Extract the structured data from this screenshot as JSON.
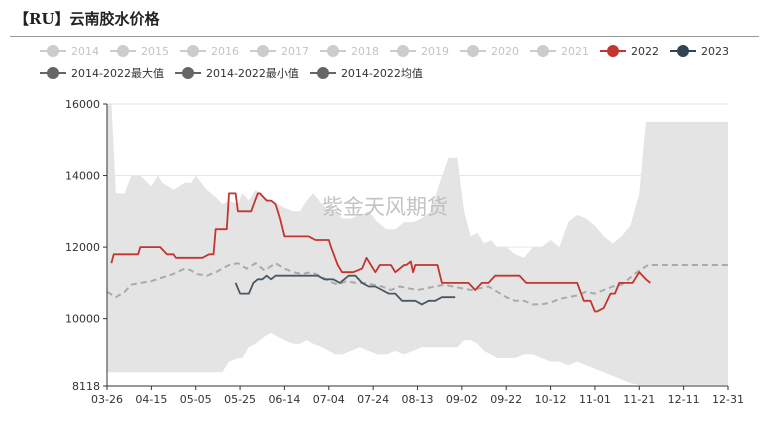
{
  "title": "【RU】云南胶水价格",
  "watermark": "紫金天风期货",
  "legend": [
    {
      "label": "2014",
      "color": "#cccccc",
      "active": false
    },
    {
      "label": "2015",
      "color": "#cccccc",
      "active": false
    },
    {
      "label": "2016",
      "color": "#cccccc",
      "active": false
    },
    {
      "label": "2017",
      "color": "#cccccc",
      "active": false
    },
    {
      "label": "2018",
      "color": "#cccccc",
      "active": false
    },
    {
      "label": "2019",
      "color": "#cccccc",
      "active": false
    },
    {
      "label": "2020",
      "color": "#cccccc",
      "active": false
    },
    {
      "label": "2021",
      "color": "#cccccc",
      "active": false
    },
    {
      "label": "2022",
      "color": "#c23531",
      "active": true
    },
    {
      "label": "2023",
      "color": "#2f4554",
      "active": true
    },
    {
      "label": "2014-2022最大值",
      "color": "#666666",
      "active": true
    },
    {
      "label": "2014-2022最小值",
      "color": "#666666",
      "active": true
    },
    {
      "label": "2014-2022均值",
      "color": "#666666",
      "active": true
    }
  ],
  "chart_data": {
    "type": "line",
    "x_categories": [
      "03-26",
      "04-15",
      "05-05",
      "05-25",
      "06-14",
      "07-04",
      "07-24",
      "08-13",
      "09-02",
      "09-22",
      "10-12",
      "11-01",
      "11-21",
      "12-11",
      "12-31"
    ],
    "x_start": "03-26",
    "x_end": "12-31",
    "y_ticks": [
      8118,
      10000,
      12000,
      14000,
      16000
    ],
    "ylim": [
      8118,
      16000
    ],
    "grid": true,
    "legend_position": "top",
    "range_band": {
      "name": "2014-2022最大值 / 2014-2022最小值",
      "color": "#e4e4e4",
      "x": [
        "03-26",
        "03-28",
        "03-30",
        "04-03",
        "04-06",
        "04-10",
        "04-15",
        "04-18",
        "04-20",
        "04-25",
        "04-30",
        "05-03",
        "05-05",
        "05-10",
        "05-14",
        "05-17",
        "05-20",
        "05-24",
        "05-26",
        "05-29",
        "06-01",
        "06-05",
        "06-08",
        "06-11",
        "06-14",
        "06-18",
        "06-21",
        "06-24",
        "06-27",
        "07-01",
        "07-04",
        "07-07",
        "07-10",
        "07-14",
        "07-18",
        "07-22",
        "07-26",
        "07-30",
        "08-03",
        "08-07",
        "08-11",
        "08-15",
        "08-19",
        "08-23",
        "08-27",
        "08-31",
        "09-03",
        "09-06",
        "09-09",
        "09-12",
        "09-15",
        "09-18",
        "09-22",
        "09-26",
        "09-30",
        "10-04",
        "10-08",
        "10-12",
        "10-16",
        "10-20",
        "10-24",
        "10-28",
        "11-01",
        "11-05",
        "11-09",
        "11-13",
        "11-17",
        "11-21",
        "11-24",
        "11-27",
        "12-01",
        "12-05",
        "12-11",
        "12-16",
        "12-21",
        "12-26",
        "12-31"
      ],
      "max": [
        16000,
        16000,
        13500,
        13500,
        14000,
        14000,
        13700,
        14000,
        13800,
        13600,
        13800,
        13800,
        14000,
        13600,
        13400,
        13200,
        13300,
        13200,
        13500,
        13300,
        13600,
        13400,
        13300,
        13200,
        13100,
        13000,
        13000,
        13300,
        13500,
        13200,
        13000,
        13000,
        12800,
        12800,
        12900,
        13000,
        12700,
        12500,
        12500,
        12700,
        12700,
        12800,
        13000,
        13800,
        14500,
        14500,
        13000,
        12300,
        12400,
        12100,
        12200,
        12000,
        12000,
        11800,
        11700,
        12000,
        12000,
        12200,
        12000,
        12700,
        12900,
        12800,
        12600,
        12300,
        12100,
        12300,
        12600,
        13500,
        15500,
        15500,
        15500,
        15500,
        15500,
        15500,
        15500,
        15500,
        15500
      ],
      "min": [
        8500,
        8500,
        8500,
        8500,
        8500,
        8500,
        8500,
        8500,
        8500,
        8500,
        8500,
        8500,
        8500,
        8500,
        8500,
        8500,
        8800,
        8900,
        8900,
        9200,
        9300,
        9500,
        9600,
        9500,
        9400,
        9300,
        9300,
        9400,
        9300,
        9200,
        9100,
        9000,
        9000,
        9100,
        9200,
        9100,
        9000,
        9000,
        9100,
        9000,
        9100,
        9200,
        9200,
        9200,
        9200,
        9200,
        9400,
        9400,
        9300,
        9100,
        9000,
        8900,
        8900,
        8900,
        9000,
        9000,
        8900,
        8800,
        8800,
        8700,
        8800,
        8700,
        8600,
        8500,
        8400,
        8300,
        8200,
        8150,
        8150,
        8150,
        8150,
        8150,
        8150,
        8150,
        8150,
        8150,
        8150
      ]
    },
    "series": [
      {
        "name": "2014-2022均值",
        "color": "#aaaaaa",
        "dashed": true,
        "x": [
          "03-26",
          "03-30",
          "04-03",
          "04-06",
          "04-10",
          "04-15",
          "04-20",
          "04-25",
          "04-30",
          "05-03",
          "05-05",
          "05-10",
          "05-14",
          "05-17",
          "05-20",
          "05-24",
          "05-28",
          "06-01",
          "06-05",
          "06-10",
          "06-14",
          "06-18",
          "06-22",
          "06-26",
          "06-30",
          "07-04",
          "07-08",
          "07-12",
          "07-16",
          "07-20",
          "07-24",
          "07-28",
          "08-01",
          "08-05",
          "08-09",
          "08-13",
          "08-17",
          "08-21",
          "08-25",
          "08-29",
          "09-02",
          "09-06",
          "09-10",
          "09-14",
          "09-18",
          "09-22",
          "09-26",
          "09-30",
          "10-04",
          "10-08",
          "10-12",
          "10-16",
          "10-20",
          "10-24",
          "10-28",
          "11-01",
          "11-05",
          "11-09",
          "11-13",
          "11-17",
          "11-21",
          "11-25",
          "12-01",
          "12-11",
          "12-21",
          "12-31"
        ],
        "y": [
          10750,
          10600,
          10750,
          10950,
          11000,
          11050,
          11150,
          11250,
          11400,
          11350,
          11250,
          11200,
          11300,
          11400,
          11500,
          11550,
          11400,
          11550,
          11350,
          11550,
          11400,
          11300,
          11250,
          11300,
          11200,
          11050,
          10950,
          11050,
          11000,
          11000,
          10950,
          10900,
          10800,
          10900,
          10850,
          10800,
          10850,
          10900,
          10950,
          10900,
          10850,
          10800,
          10850,
          10900,
          10750,
          10600,
          10500,
          10500,
          10400,
          10400,
          10450,
          10550,
          10600,
          10650,
          10750,
          10700,
          10800,
          10900,
          10950,
          11150,
          11350,
          11500,
          11500,
          11500,
          11500,
          11500
        ]
      },
      {
        "name": "2022",
        "color": "#c23531",
        "dashed": false,
        "x": [
          "03-28",
          "03-29",
          "04-01",
          "04-05",
          "04-09",
          "04-10",
          "04-13",
          "04-16",
          "04-19",
          "04-22",
          "04-25",
          "04-26",
          "04-29",
          "05-02",
          "05-05",
          "05-08",
          "05-11",
          "05-13",
          "05-14",
          "05-17",
          "05-19",
          "05-20",
          "05-23",
          "05-24",
          "05-26",
          "05-27",
          "05-30",
          "06-02",
          "06-03",
          "06-06",
          "06-08",
          "06-10",
          "06-12",
          "06-14",
          "06-16",
          "06-20",
          "06-23",
          "06-25",
          "06-28",
          "07-01",
          "07-04",
          "07-05",
          "07-08",
          "07-10",
          "07-12",
          "07-15",
          "07-19",
          "07-21",
          "07-23",
          "07-25",
          "07-27",
          "07-30",
          "08-01",
          "08-03",
          "08-07",
          "08-08",
          "08-10",
          "08-11",
          "08-12",
          "08-13",
          "08-16",
          "08-19",
          "08-22",
          "08-24",
          "08-27",
          "08-30",
          "09-02",
          "09-05",
          "09-08",
          "09-11",
          "09-14",
          "09-17",
          "09-20",
          "09-22",
          "09-25",
          "09-28",
          "10-01",
          "10-04",
          "10-07",
          "10-12",
          "10-15",
          "10-19",
          "10-24",
          "10-27",
          "10-30",
          "11-01",
          "11-02",
          "11-05",
          "11-08",
          "11-10",
          "11-12",
          "11-15",
          "11-18",
          "11-21",
          "11-24",
          "11-26"
        ],
        "y": [
          11550,
          11800,
          11800,
          11800,
          11800,
          12000,
          12000,
          12000,
          12000,
          11800,
          11800,
          11700,
          11700,
          11700,
          11700,
          11700,
          11800,
          11800,
          12500,
          12500,
          12500,
          13500,
          13500,
          13000,
          13000,
          13000,
          13000,
          13500,
          13500,
          13300,
          13300,
          13200,
          12800,
          12300,
          12300,
          12300,
          12300,
          12300,
          12200,
          12200,
          12200,
          12000,
          11500,
          11300,
          11300,
          11300,
          11400,
          11700,
          11500,
          11300,
          11500,
          11500,
          11500,
          11300,
          11500,
          11500,
          11600,
          11300,
          11500,
          11500,
          11500,
          11500,
          11500,
          11000,
          11000,
          11000,
          11000,
          11000,
          10800,
          11000,
          11000,
          11200,
          11200,
          11200,
          11200,
          11200,
          11000,
          11000,
          11000,
          11000,
          11000,
          11000,
          11000,
          10500,
          10500,
          10200,
          10200,
          10300,
          10700,
          10700,
          11000,
          11000,
          11000,
          11300,
          11100,
          11000
        ]
      },
      {
        "name": "2023",
        "color": "#4a5866",
        "dashed": false,
        "x": [
          "05-23",
          "05-25",
          "05-27",
          "05-29",
          "05-31",
          "06-02",
          "06-04",
          "06-06",
          "06-08",
          "06-10",
          "06-12",
          "06-14",
          "06-17",
          "06-20",
          "06-23",
          "06-26",
          "06-29",
          "07-02",
          "07-04",
          "07-06",
          "07-09",
          "07-11",
          "07-13",
          "07-16",
          "07-19",
          "07-22",
          "07-25",
          "07-28",
          "07-31",
          "08-03",
          "08-06",
          "08-09",
          "08-12",
          "08-15",
          "08-18",
          "08-21",
          "08-24",
          "08-27",
          "08-30"
        ],
        "y": [
          11000,
          10700,
          10700,
          10700,
          11000,
          11100,
          11100,
          11200,
          11100,
          11200,
          11200,
          11200,
          11200,
          11200,
          11200,
          11200,
          11200,
          11100,
          11100,
          11100,
          11000,
          11100,
          11200,
          11200,
          11000,
          10900,
          10900,
          10800,
          10700,
          10700,
          10500,
          10500,
          10500,
          10400,
          10500,
          10500,
          10600,
          10600,
          10600
        ]
      }
    ]
  }
}
